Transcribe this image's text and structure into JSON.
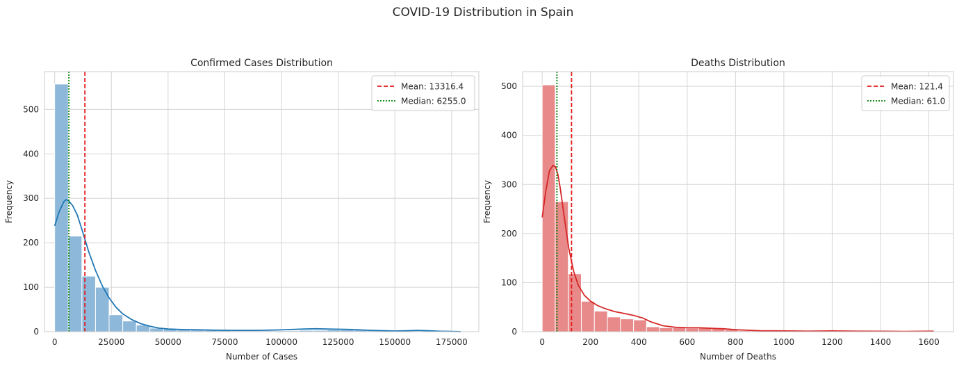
{
  "figure": {
    "title": "COVID-19 Distribution in Spain"
  },
  "colors": {
    "grid": "#d5d5d5",
    "spine": "#cccccc",
    "mean_line": "#e41a1c",
    "median_line": "#008000"
  },
  "chart_data": [
    {
      "type": "histogram",
      "title": "Confirmed Cases Distribution",
      "xlabel": "Number of Cases",
      "ylabel": "Frequency",
      "xlim": [
        -4500,
        187000
      ],
      "ylim": [
        0,
        585
      ],
      "xticks": [
        0,
        25000,
        50000,
        75000,
        100000,
        125000,
        150000,
        175000
      ],
      "yticks": [
        0,
        100,
        200,
        300,
        400,
        500
      ],
      "bin_width": 6000,
      "bins_start": 0,
      "counts": [
        557,
        215,
        125,
        100,
        38,
        24,
        15,
        8,
        6,
        4,
        4,
        3,
        3,
        2,
        2,
        2,
        2,
        2,
        3,
        3,
        4,
        4,
        4,
        4,
        3,
        3,
        2,
        3,
        3,
        1
      ],
      "bar_color": "#8db8da",
      "kde_color": "#1f77b4",
      "kde": {
        "x": [
          0,
          2000,
          4000,
          5000,
          6000,
          8000,
          10000,
          12000,
          15000,
          18000,
          21000,
          24000,
          27000,
          30000,
          34000,
          38000,
          42000,
          46000,
          50000,
          55000,
          60000,
          65000,
          70000,
          80000,
          90000,
          100000,
          110000,
          115000,
          120000,
          130000,
          140000,
          150000,
          155000,
          160000,
          165000,
          170000,
          175000,
          179000
        ],
        "y": [
          238,
          270,
          292,
          297,
          295,
          283,
          262,
          230,
          180,
          138,
          103,
          76,
          55,
          40,
          27,
          18,
          12,
          8,
          6,
          5,
          4.5,
          4,
          3.5,
          3,
          3,
          4,
          6,
          6.5,
          6,
          5,
          3,
          1.5,
          2,
          3,
          2,
          1,
          0.5,
          0.2
        ]
      },
      "mean": 13316.4,
      "median": 6255.0,
      "legend": {
        "position": "upper right",
        "entries": [
          "Mean: 13316.4",
          "Median: 6255.0"
        ]
      }
    },
    {
      "type": "histogram",
      "title": "Deaths Distribution",
      "xlabel": "Number of Deaths",
      "ylabel": "Frequency",
      "xlim": [
        -81,
        1702
      ],
      "ylim": [
        0,
        530
      ],
      "xticks": [
        0,
        200,
        400,
        600,
        800,
        1000,
        1200,
        1400,
        1600
      ],
      "yticks": [
        0,
        100,
        200,
        300,
        400,
        500
      ],
      "bin_width": 54,
      "bins_start": 0,
      "counts": [
        503,
        265,
        118,
        62,
        42,
        30,
        26,
        24,
        10,
        8,
        8,
        7,
        8,
        7,
        4,
        2,
        2,
        1,
        1,
        1,
        1,
        1,
        1,
        1,
        1,
        1,
        1,
        1,
        1,
        1
      ],
      "bar_color": "#e8898a",
      "kde_color": "#d62728",
      "kde": {
        "x": [
          0,
          15,
          30,
          45,
          55,
          65,
          75,
          90,
          110,
          130,
          150,
          175,
          200,
          230,
          260,
          300,
          340,
          380,
          420,
          450,
          500,
          550,
          600,
          650,
          700,
          750,
          800,
          900,
          1000,
          1100,
          1200,
          1300,
          1400,
          1500,
          1620
        ],
        "y": [
          233,
          287,
          328,
          339,
          336,
          320,
          292,
          238,
          170,
          123,
          94,
          74,
          62,
          53,
          47,
          41,
          37,
          33,
          27,
          20,
          12,
          9,
          8,
          8,
          7,
          6,
          4,
          2,
          1.5,
          1,
          1.5,
          1,
          0.8,
          0.5,
          1
        ]
      },
      "mean": 121.4,
      "median": 61.0,
      "legend": {
        "position": "upper right",
        "entries": [
          "Mean: 121.4",
          "Median: 61.0"
        ]
      }
    }
  ]
}
